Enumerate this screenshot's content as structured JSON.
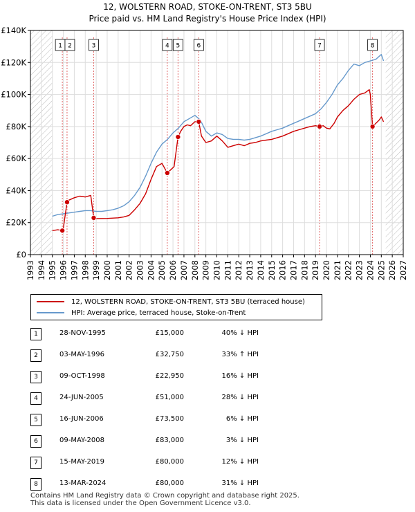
{
  "chart_data": {
    "type": "line",
    "title": "12, WOLSTERN ROAD, STOKE-ON-TRENT, ST3 5BU",
    "subtitle": "Price paid vs. HM Land Registry's House Price Index (HPI)",
    "xlim": [
      1993,
      2027
    ],
    "ylim": [
      0,
      140000
    ],
    "x_ticks": [
      "1993",
      "1994",
      "1995",
      "1996",
      "1997",
      "1998",
      "1999",
      "2000",
      "2001",
      "2002",
      "2003",
      "2004",
      "2005",
      "2006",
      "2007",
      "2008",
      "2009",
      "2010",
      "2011",
      "2012",
      "2013",
      "2014",
      "2015",
      "2016",
      "2017",
      "2018",
      "2019",
      "2020",
      "2021",
      "2022",
      "2023",
      "2024",
      "2025",
      "2026",
      "2027"
    ],
    "y_ticks": [
      {
        "value": 0,
        "label": "£0"
      },
      {
        "value": 20000,
        "label": "£20K"
      },
      {
        "value": 40000,
        "label": "£40K"
      },
      {
        "value": 60000,
        "label": "£60K"
      },
      {
        "value": 80000,
        "label": "£80K"
      },
      {
        "value": 100000,
        "label": "£100K"
      },
      {
        "value": 120000,
        "label": "£120K"
      },
      {
        "value": 140000,
        "label": "£140K"
      }
    ],
    "hatched_ranges": [
      [
        1993,
        1995.0
      ],
      [
        2025.4,
        2027
      ]
    ],
    "colors": {
      "property": "#cc0000",
      "hpi": "#6699cc",
      "vline": "#e06666",
      "marker": "#cc0000",
      "hatch": "#bbbbbb",
      "grid": "#dddddd"
    },
    "series": [
      {
        "name": "12, WOLSTERN ROAD, STOKE-ON-TRENT, ST3 5BU (terraced house)",
        "color": "#cc0000",
        "x": [
          1995.0,
          1995.5,
          1995.91,
          1996.0,
          1996.34,
          1996.5,
          1997.0,
          1997.5,
          1998.0,
          1998.5,
          1998.77,
          1999.0,
          2000.0,
          2001.0,
          2001.5,
          2002.0,
          2002.5,
          2003.0,
          2003.5,
          2004.0,
          2004.5,
          2005.0,
          2005.48,
          2005.8,
          2006.1,
          2006.46,
          2006.7,
          2007.0,
          2007.3,
          2007.6,
          2008.0,
          2008.35,
          2008.6,
          2009.0,
          2009.5,
          2010.0,
          2010.5,
          2011.0,
          2011.5,
          2012.0,
          2012.5,
          2013.0,
          2013.5,
          2014.0,
          2014.5,
          2015.0,
          2015.5,
          2016.0,
          2016.5,
          2017.0,
          2017.5,
          2018.0,
          2018.5,
          2019.0,
          2019.37,
          2019.7,
          2020.0,
          2020.3,
          2020.7,
          2021.0,
          2021.5,
          2022.0,
          2022.5,
          2023.0,
          2023.5,
          2023.9,
          2024.0,
          2024.2,
          2024.5,
          2024.8,
          2025.0,
          2025.2
        ],
        "y": [
          15000,
          15500,
          15000,
          16500,
          32750,
          34000,
          35500,
          36500,
          36000,
          37000,
          22950,
          22500,
          22600,
          23000,
          23500,
          24500,
          28000,
          32000,
          38000,
          47000,
          55000,
          57000,
          51000,
          53000,
          55000,
          73500,
          77000,
          80000,
          81000,
          80500,
          83000,
          83000,
          74000,
          70000,
          71000,
          74000,
          71000,
          67000,
          68000,
          69000,
          68000,
          69500,
          70000,
          71000,
          71500,
          72000,
          73000,
          74000,
          75500,
          77000,
          78000,
          79000,
          80000,
          80500,
          80000,
          80500,
          79000,
          78500,
          82000,
          86000,
          90000,
          93000,
          97000,
          100000,
          101000,
          103000,
          100000,
          80000,
          82000,
          84000,
          86000,
          83000
        ]
      },
      {
        "name": "HPI: Average price, terraced house, Stoke-on-Trent",
        "color": "#6699cc",
        "x": [
          1995.0,
          1995.5,
          1996.0,
          1996.5,
          1997.0,
          1997.5,
          1998.0,
          1998.5,
          1999.0,
          1999.5,
          2000.0,
          2000.5,
          2001.0,
          2001.5,
          2002.0,
          2002.5,
          2003.0,
          2003.5,
          2004.0,
          2004.5,
          2005.0,
          2005.5,
          2006.0,
          2006.5,
          2007.0,
          2007.5,
          2008.0,
          2008.5,
          2009.0,
          2009.5,
          2010.0,
          2010.5,
          2011.0,
          2011.5,
          2012.0,
          2012.5,
          2013.0,
          2013.5,
          2014.0,
          2014.5,
          2015.0,
          2015.5,
          2016.0,
          2016.5,
          2017.0,
          2017.5,
          2018.0,
          2018.5,
          2019.0,
          2019.5,
          2020.0,
          2020.5,
          2021.0,
          2021.5,
          2022.0,
          2022.5,
          2023.0,
          2023.5,
          2024.0,
          2024.5,
          2025.0,
          2025.2
        ],
        "y": [
          24000,
          25000,
          25500,
          26000,
          26500,
          27000,
          27500,
          27500,
          27000,
          27000,
          27500,
          28000,
          29000,
          30500,
          33000,
          37000,
          42000,
          49000,
          57000,
          64000,
          69000,
          72000,
          76000,
          79000,
          83000,
          85000,
          87000,
          84000,
          77000,
          74000,
          76000,
          75000,
          72500,
          72000,
          72000,
          71500,
          72000,
          73000,
          74000,
          75500,
          77000,
          78000,
          79000,
          80500,
          82000,
          83500,
          85000,
          86500,
          88000,
          91000,
          95000,
          100000,
          106000,
          110000,
          115000,
          119000,
          118000,
          120000,
          121000,
          122000,
          125000,
          121000
        ]
      }
    ],
    "transactions": [
      {
        "num": "1",
        "x": 1995.91,
        "y": 15000
      },
      {
        "num": "2",
        "x": 1996.34,
        "y": 32750
      },
      {
        "num": "3",
        "x": 1998.77,
        "y": 22950
      },
      {
        "num": "4",
        "x": 2005.48,
        "y": 51000
      },
      {
        "num": "5",
        "x": 2006.46,
        "y": 73500
      },
      {
        "num": "6",
        "x": 2008.35,
        "y": 83000
      },
      {
        "num": "7",
        "x": 2019.37,
        "y": 80000
      },
      {
        "num": "8",
        "x": 2024.2,
        "y": 80000
      }
    ]
  },
  "legend": {
    "property_label": "12, WOLSTERN ROAD, STOKE-ON-TRENT, ST3 5BU (terraced house)",
    "hpi_label": "HPI: Average price, terraced house, Stoke-on-Trent"
  },
  "table": [
    {
      "num": "1",
      "date": "28-NOV-1995",
      "price": "£15,000",
      "hpi": "40% ↓ HPI"
    },
    {
      "num": "2",
      "date": "03-MAY-1996",
      "price": "£32,750",
      "hpi": "33% ↑ HPI"
    },
    {
      "num": "3",
      "date": "09-OCT-1998",
      "price": "£22,950",
      "hpi": "16% ↓ HPI"
    },
    {
      "num": "4",
      "date": "24-JUN-2005",
      "price": "£51,000",
      "hpi": "28% ↓ HPI"
    },
    {
      "num": "5",
      "date": "16-JUN-2006",
      "price": "£73,500",
      "hpi": "6% ↓ HPI"
    },
    {
      "num": "6",
      "date": "09-MAY-2008",
      "price": "£83,000",
      "hpi": "3% ↓ HPI"
    },
    {
      "num": "7",
      "date": "15-MAY-2019",
      "price": "£80,000",
      "hpi": "12% ↓ HPI"
    },
    {
      "num": "8",
      "date": "13-MAR-2024",
      "price": "£80,000",
      "hpi": "31% ↓ HPI"
    }
  ],
  "footer": {
    "line1": "Contains HM Land Registry data © Crown copyright and database right 2025.",
    "line2": "This data is licensed under the Open Government Licence v3.0."
  }
}
